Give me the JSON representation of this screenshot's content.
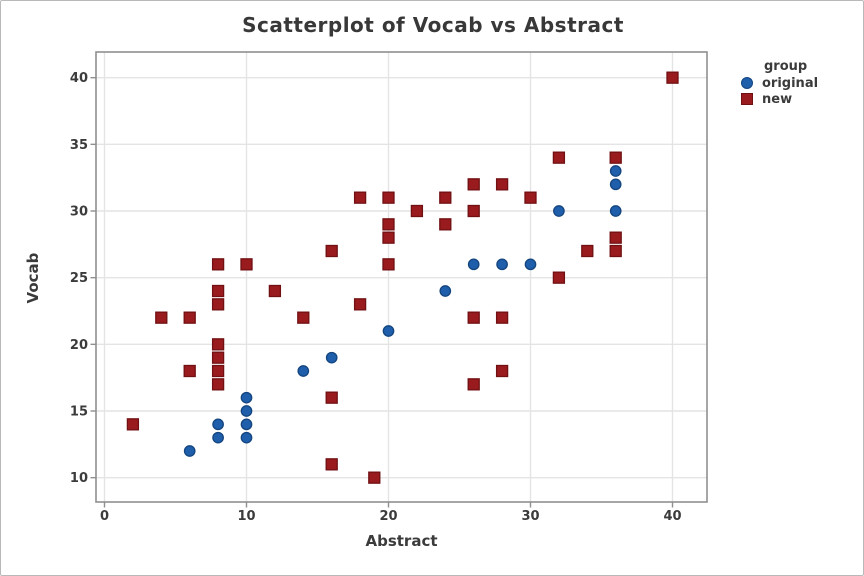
{
  "window": {
    "background": "#ffffff",
    "border_color": "#b9b9b9"
  },
  "chart_data": {
    "type": "scatter",
    "title": "Scatterplot of Vocab vs Abstract",
    "xlabel": "Abstract",
    "ylabel": "Vocab",
    "x_ticks": [
      0,
      10,
      20,
      30,
      40
    ],
    "y_ticks": [
      10,
      15,
      20,
      25,
      30,
      35,
      40
    ],
    "xlim": [
      -0.6,
      42.4
    ],
    "ylim": [
      8.2,
      41.9
    ],
    "grid": true,
    "legend": {
      "title": "group",
      "position": "top-right-outside"
    },
    "series": [
      {
        "name": "original",
        "marker": "circle",
        "color": "#1E5EAB",
        "edge_color": "#14457F",
        "points": [
          [
            6,
            12
          ],
          [
            8,
            14
          ],
          [
            8,
            13
          ],
          [
            10,
            16
          ],
          [
            10,
            15
          ],
          [
            10,
            14
          ],
          [
            10,
            13
          ],
          [
            14,
            18
          ],
          [
            16,
            19
          ],
          [
            20,
            21
          ],
          [
            24,
            24
          ],
          [
            26,
            26
          ],
          [
            28,
            26
          ],
          [
            30,
            26
          ],
          [
            32,
            30
          ],
          [
            36,
            33
          ],
          [
            36,
            32
          ],
          [
            36,
            30
          ]
        ]
      },
      {
        "name": "new",
        "marker": "square",
        "color": "#9A1B1E",
        "edge_color": "#701013",
        "points": [
          [
            2,
            14
          ],
          [
            4,
            22
          ],
          [
            6,
            22
          ],
          [
            6,
            18
          ],
          [
            8,
            26
          ],
          [
            8,
            24
          ],
          [
            8,
            23
          ],
          [
            8,
            20
          ],
          [
            8,
            19
          ],
          [
            8,
            18
          ],
          [
            8,
            17
          ],
          [
            10,
            26
          ],
          [
            12,
            24
          ],
          [
            14,
            22
          ],
          [
            16,
            27
          ],
          [
            16,
            16
          ],
          [
            16,
            11
          ],
          [
            18,
            31
          ],
          [
            18,
            23
          ],
          [
            19,
            10
          ],
          [
            20,
            31
          ],
          [
            20,
            29
          ],
          [
            20,
            28
          ],
          [
            20,
            26
          ],
          [
            22,
            30
          ],
          [
            24,
            31
          ],
          [
            24,
            29
          ],
          [
            26,
            32
          ],
          [
            26,
            30
          ],
          [
            26,
            22
          ],
          [
            26,
            17
          ],
          [
            28,
            32
          ],
          [
            28,
            22
          ],
          [
            28,
            18
          ],
          [
            30,
            31
          ],
          [
            32,
            34
          ],
          [
            32,
            25
          ],
          [
            34,
            27
          ],
          [
            36,
            34
          ],
          [
            36,
            28
          ],
          [
            36,
            27
          ],
          [
            40,
            40
          ]
        ]
      }
    ],
    "styles": {
      "grid_color": "#e4e4e4",
      "frame_color": "#8f8f8f",
      "tick_color": "#8f8f8f",
      "text_color": "#3b3b3b"
    }
  }
}
